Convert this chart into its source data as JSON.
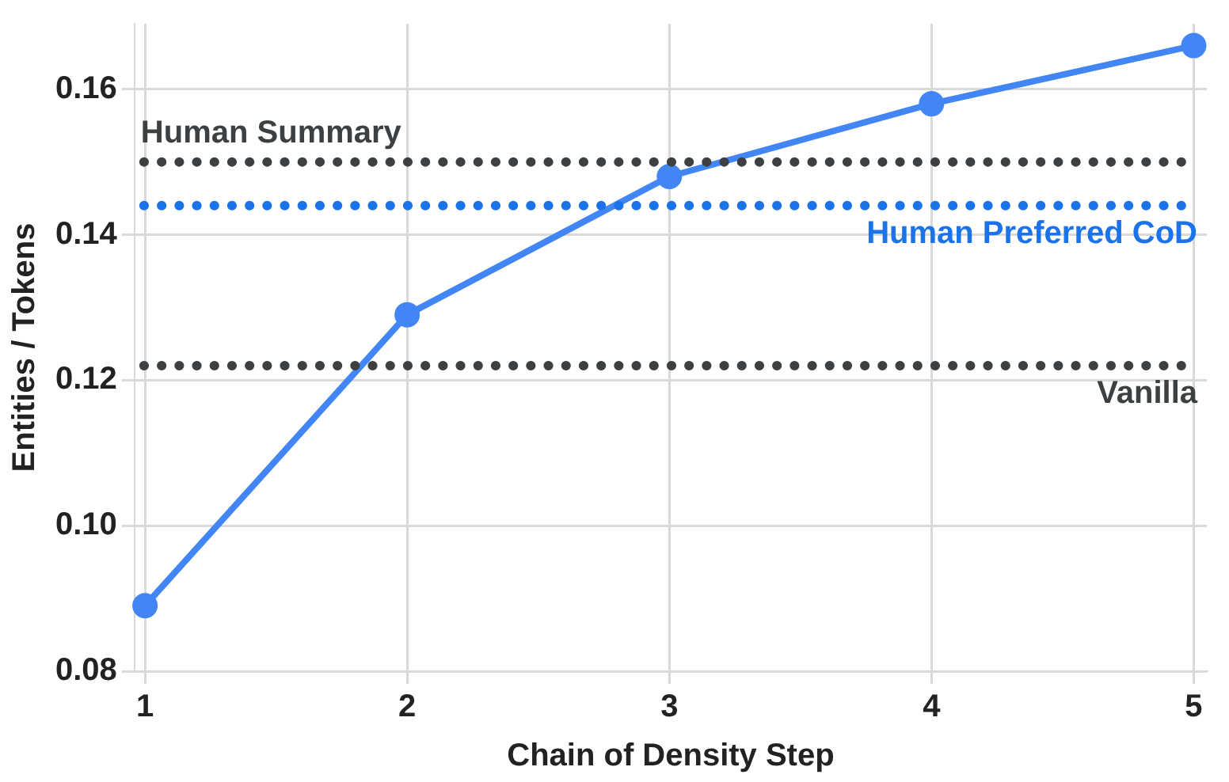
{
  "chart_data": {
    "type": "line",
    "xlabel": "Chain of Density Step",
    "ylabel": "Entities / Tokens",
    "x": [
      1,
      2,
      3,
      4,
      5
    ],
    "series": [
      {
        "color": "#4285f4",
        "values": [
          0.089,
          0.129,
          0.148,
          0.158,
          0.166
        ]
      }
    ],
    "xlim": [
      0.96,
      5.05
    ],
    "xticks": [
      1,
      2,
      3,
      4,
      5
    ],
    "ylim": [
      0.08,
      0.169
    ],
    "yticks": [
      0.08,
      {
        "value": 0.1,
        "label": "0.10"
      },
      0.12,
      0.14,
      0.16
    ],
    "grid": true,
    "legend": false,
    "marker": "circle",
    "line_style": "solid",
    "ref_lines": [
      {
        "axis": "y",
        "value": 0.15,
        "label": "Human Summary",
        "color": "#3c4043",
        "line_style": "dotted"
      },
      {
        "axis": "y",
        "value": 0.144,
        "label": "Human Preferred CoD",
        "color": "#1a73e8",
        "line_style": "dotted"
      },
      {
        "axis": "y",
        "value": 0.122,
        "label": "Vanilla",
        "color": "#3c4043",
        "line_style": "dotted"
      }
    ]
  }
}
